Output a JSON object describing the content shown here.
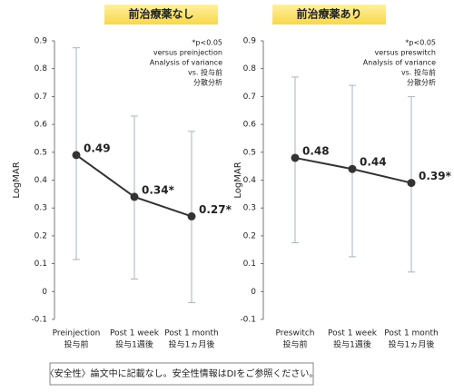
{
  "chart_data": [
    {
      "type": "line",
      "title": "前治療薬なし",
      "ylabel": "LogMAR",
      "categories": [
        "Preinjection",
        "Post 1 week",
        "Post 1 month"
      ],
      "categories_ja": [
        "投与前",
        "投与1週後",
        "投与1ヵ月後"
      ],
      "values": [
        0.49,
        0.34,
        0.27
      ],
      "value_labels": [
        "0.49",
        "0.34*",
        "0.27*"
      ],
      "err_high": [
        0.875,
        0.63,
        0.575
      ],
      "err_low": [
        0.115,
        0.045,
        -0.04
      ],
      "ylim": [
        -0.1,
        0.9
      ],
      "yticks": [
        -0.1,
        0,
        0.1,
        0.2,
        0.3,
        0.4,
        0.5,
        0.6,
        0.7,
        0.8,
        0.9
      ],
      "annotation": [
        "*p<0.05",
        "versus preinjection",
        "Analysis of variance",
        "vs. 投与前",
        "分散分析"
      ],
      "color": "#333333",
      "error_color": "#a9b3bd"
    },
    {
      "type": "line",
      "title": "前治療薬あり",
      "ylabel": "LogMAR",
      "categories": [
        "Preswitch",
        "Post 1 week",
        "Post 1 month"
      ],
      "categories_ja": [
        "投与前",
        "投与1週後",
        "投与1ヵ月後"
      ],
      "values": [
        0.48,
        0.44,
        0.39
      ],
      "value_labels": [
        "0.48",
        "0.44",
        "0.39*"
      ],
      "err_high": [
        0.77,
        0.74,
        0.7
      ],
      "err_low": [
        0.175,
        0.125,
        0.07
      ],
      "ylim": [
        -0.1,
        0.9
      ],
      "yticks": [
        -0.1,
        0,
        0.1,
        0.2,
        0.3,
        0.4,
        0.5,
        0.6,
        0.7,
        0.8,
        0.9
      ],
      "annotation": [
        "*p<0.05",
        "versus preswitch",
        "Analysis of variance",
        "vs. 投与前",
        "分散分析"
      ],
      "color": "#333333",
      "error_color": "#a9b3bd"
    }
  ],
  "footnote": "〈安全性〉論文中に記載なし。安全性情報はDIをご参照ください。"
}
